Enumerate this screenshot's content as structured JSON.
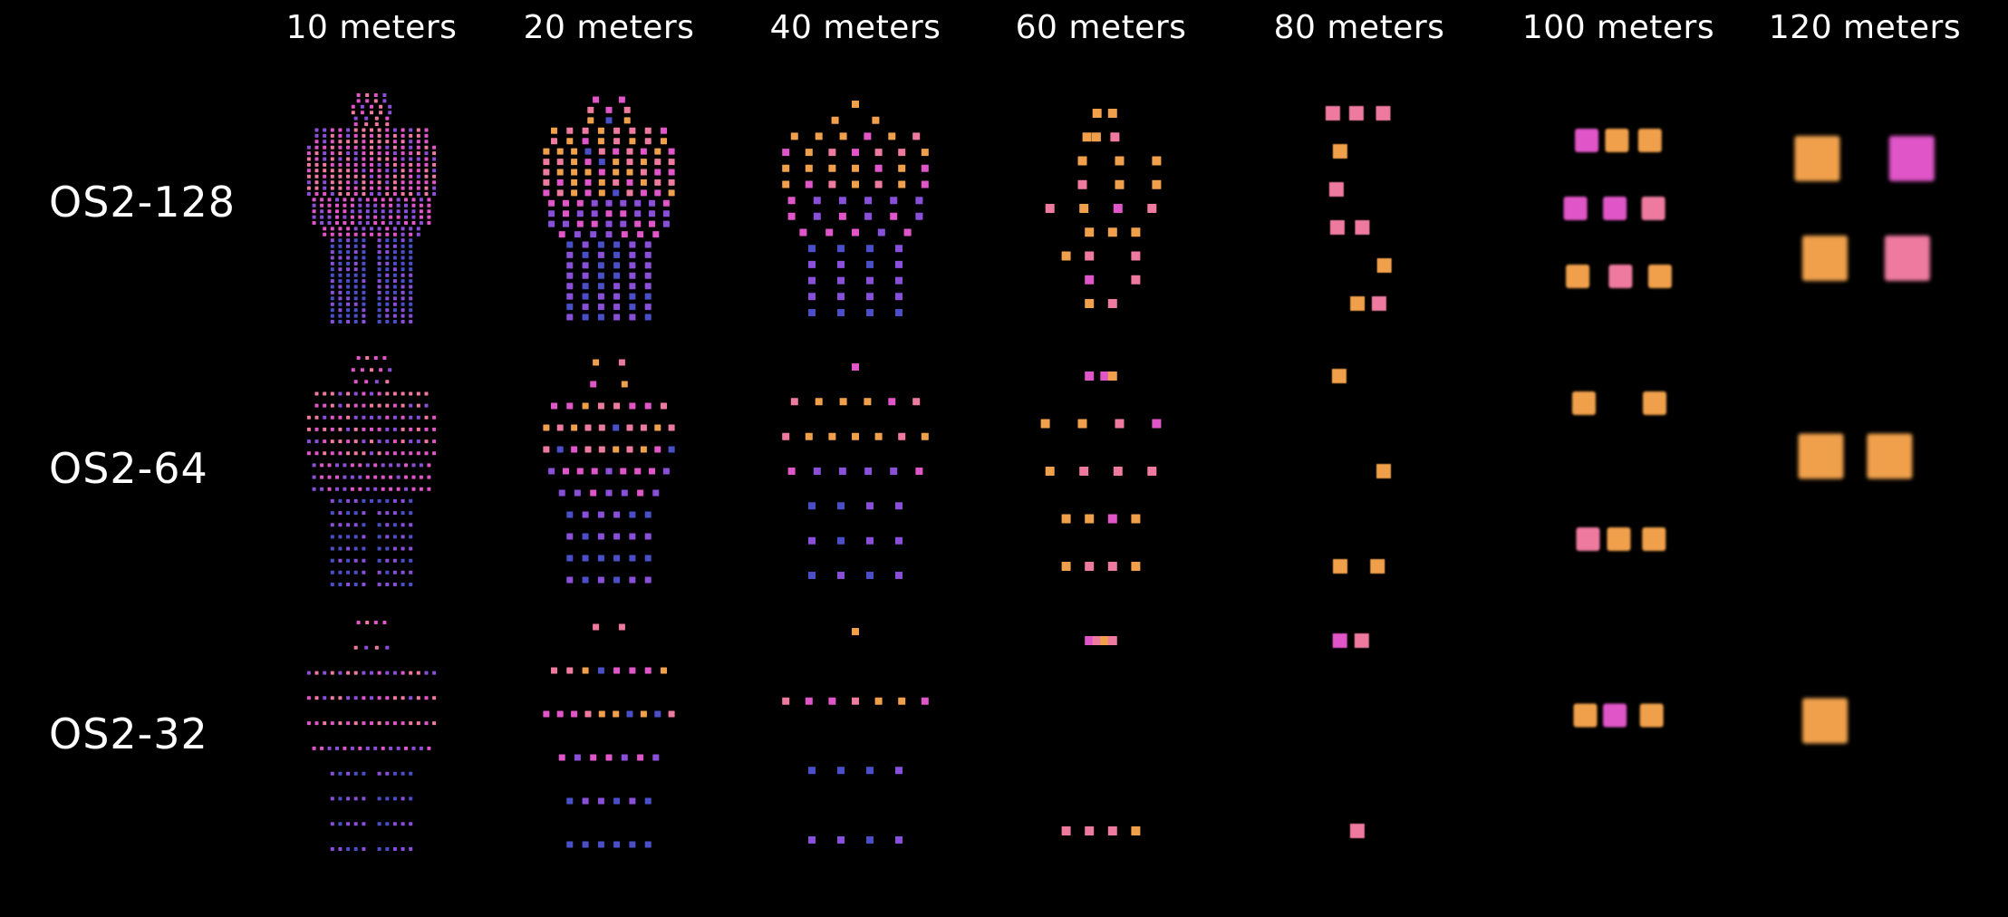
{
  "columns": [
    {
      "label": "10 meters"
    },
    {
      "label": "20 meters"
    },
    {
      "label": "40 meters"
    },
    {
      "label": "60 meters"
    },
    {
      "label": "80 meters"
    },
    {
      "label": "100 meters"
    },
    {
      "label": "120 meters"
    }
  ],
  "rows": [
    {
      "label": "OS2-128"
    },
    {
      "label": "OS2-64"
    },
    {
      "label": "OS2-32"
    }
  ],
  "colors": {
    "background": "#000000",
    "text": "#ffffff",
    "points": [
      "#f0a04b",
      "#ef7aa0",
      "#e055c8",
      "#8a4fd8",
      "#4a4fc8"
    ]
  }
}
